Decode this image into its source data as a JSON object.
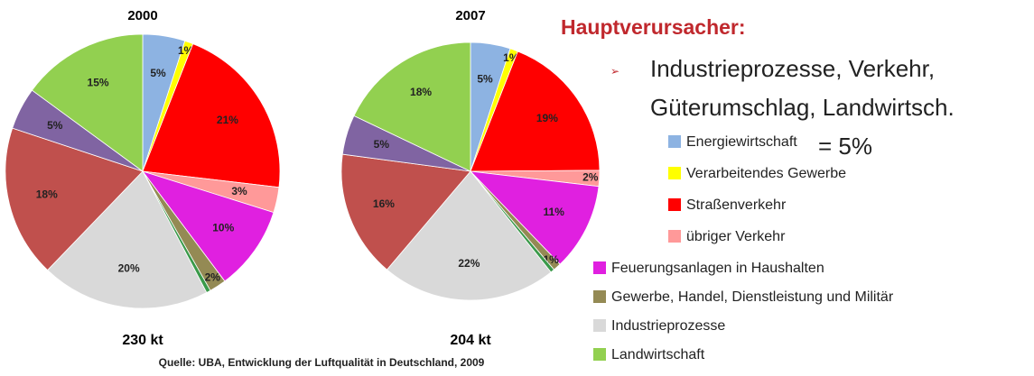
{
  "chart_data": [
    {
      "type": "pie",
      "title": "2000",
      "total_label": "230 kt",
      "values": [
        5,
        1,
        21,
        3,
        10,
        2,
        0.5,
        20,
        18,
        5,
        15
      ],
      "value_labels": [
        "5%",
        "1%",
        "21%",
        "3%",
        "10%",
        "2%",
        null,
        "20%",
        "18%",
        "5%",
        "15%"
      ],
      "colors": [
        "#8db3e2",
        "#ffff00",
        "#ff0000",
        "#ff9999",
        "#e020e0",
        "#948a54",
        "#3a9a4a",
        "#d9d9d9",
        "#c0504d",
        "#8064a2",
        "#92d050"
      ]
    },
    {
      "type": "pie",
      "title": "2007",
      "total_label": "204 kt",
      "values": [
        5,
        1,
        19,
        2,
        11,
        1,
        0.5,
        22,
        16,
        5,
        18
      ],
      "value_labels": [
        "5%",
        "1%",
        "19%",
        "2%",
        "11%",
        "1%",
        null,
        "22%",
        "16%",
        "5%",
        "18%"
      ],
      "colors": [
        "#8db3e2",
        "#ffff00",
        "#ff0000",
        "#ff9999",
        "#e020e0",
        "#948a54",
        "#3a9a4a",
        "#d9d9d9",
        "#c0504d",
        "#8064a2",
        "#92d050"
      ]
    }
  ],
  "heading": "Hauptverursacher:",
  "bullet": [
    "Industrieprozesse, Verkehr,",
    "Güterumschlag, Landwirtsch."
  ],
  "note": "= 5%",
  "legend": [
    {
      "name": "Energiewirtschaft",
      "color": "#8db3e2"
    },
    {
      "name": "Verarbeitendes Gewerbe",
      "color": "#ffff00"
    },
    {
      "name": "Straßenverkehr",
      "color": "#ff0000"
    },
    {
      "name": "übriger Verkehr",
      "color": "#ff9999"
    },
    {
      "name": "Feuerungsanlagen in Haushalten",
      "color": "#e020e0"
    },
    {
      "name": "Gewerbe, Handel, Dienstleistung und Militär",
      "color": "#948a54"
    },
    {
      "name": "Industrieprozesse",
      "color": "#d9d9d9"
    },
    {
      "name": "Landwirtschaft",
      "color": "#92d050"
    }
  ],
  "source": "Quelle: UBA, Entwicklung der Luftqualität in Deutschland, 2009"
}
